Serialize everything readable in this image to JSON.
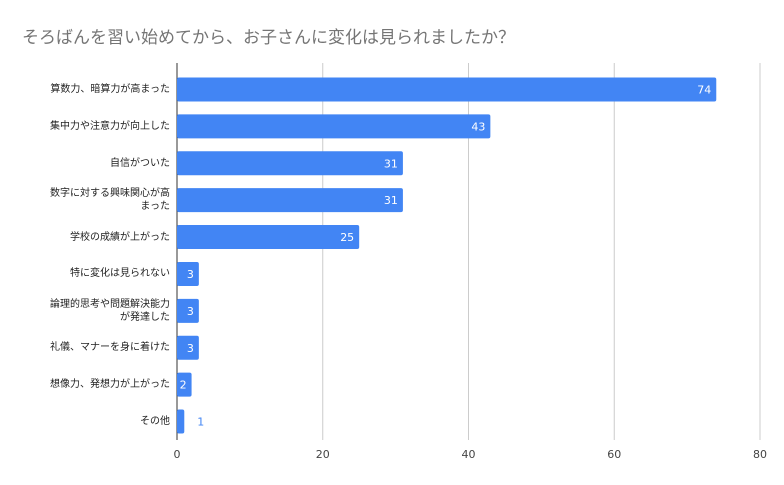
{
  "chart_data": {
    "type": "bar",
    "orientation": "horizontal",
    "title": "そろばんを習い始めてから、お子さんに変化は見られましたか？",
    "xlabel": "",
    "ylabel": "",
    "xlim": [
      0,
      80
    ],
    "xticks": [
      0,
      20,
      40,
      60,
      80
    ],
    "grid": true,
    "legend": "none",
    "series_color": "#4285f4",
    "categories": [
      [
        "算数力、暗算力が高まった"
      ],
      [
        "集中力や注意力が向上した"
      ],
      [
        "自信がついた"
      ],
      [
        "数字に対する興味関心が高",
        "まった"
      ],
      [
        "学校の成績が上がった"
      ],
      [
        "特に変化は見られない"
      ],
      [
        "論理的思考や問題解決能力",
        "が発達した"
      ],
      [
        "礼儀、マナーを身に着けた"
      ],
      [
        "想像力、発想力が上がった"
      ],
      [
        "その他"
      ]
    ],
    "values": [
      74,
      43,
      31,
      31,
      25,
      3,
      3,
      3,
      2,
      1
    ]
  }
}
